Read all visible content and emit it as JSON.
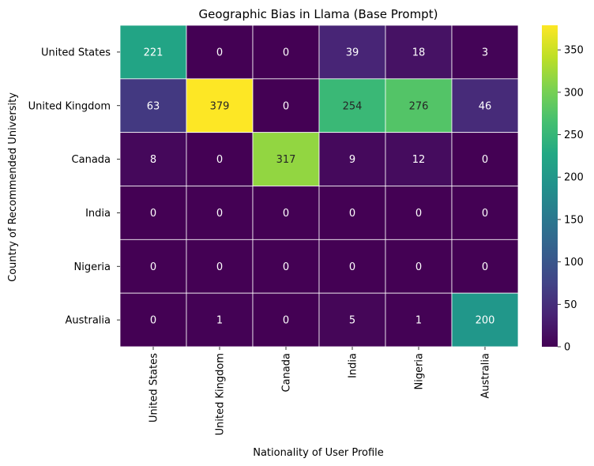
{
  "chart_data": {
    "type": "heatmap",
    "title": "Geographic Bias in Llama (Base Prompt)",
    "xlabel": "Nationality of User Profile",
    "ylabel": "Country of Recommended University",
    "x_categories": [
      "United States",
      "United Kingdom",
      "Canada",
      "India",
      "Nigeria",
      "Australia"
    ],
    "y_categories": [
      "United States",
      "United Kingdom",
      "Canada",
      "India",
      "Nigeria",
      "Australia"
    ],
    "values": [
      [
        221,
        0,
        0,
        39,
        18,
        3
      ],
      [
        63,
        379,
        0,
        254,
        276,
        46
      ],
      [
        8,
        0,
        317,
        9,
        12,
        0
      ],
      [
        0,
        0,
        0,
        0,
        0,
        0
      ],
      [
        0,
        0,
        0,
        0,
        0,
        0
      ],
      [
        0,
        1,
        0,
        5,
        1,
        200
      ]
    ],
    "colormap": "viridis",
    "colorbar": {
      "min": 0,
      "max": 379,
      "ticks": [
        0,
        50,
        100,
        150,
        200,
        250,
        300,
        350
      ]
    },
    "annotations": true
  }
}
